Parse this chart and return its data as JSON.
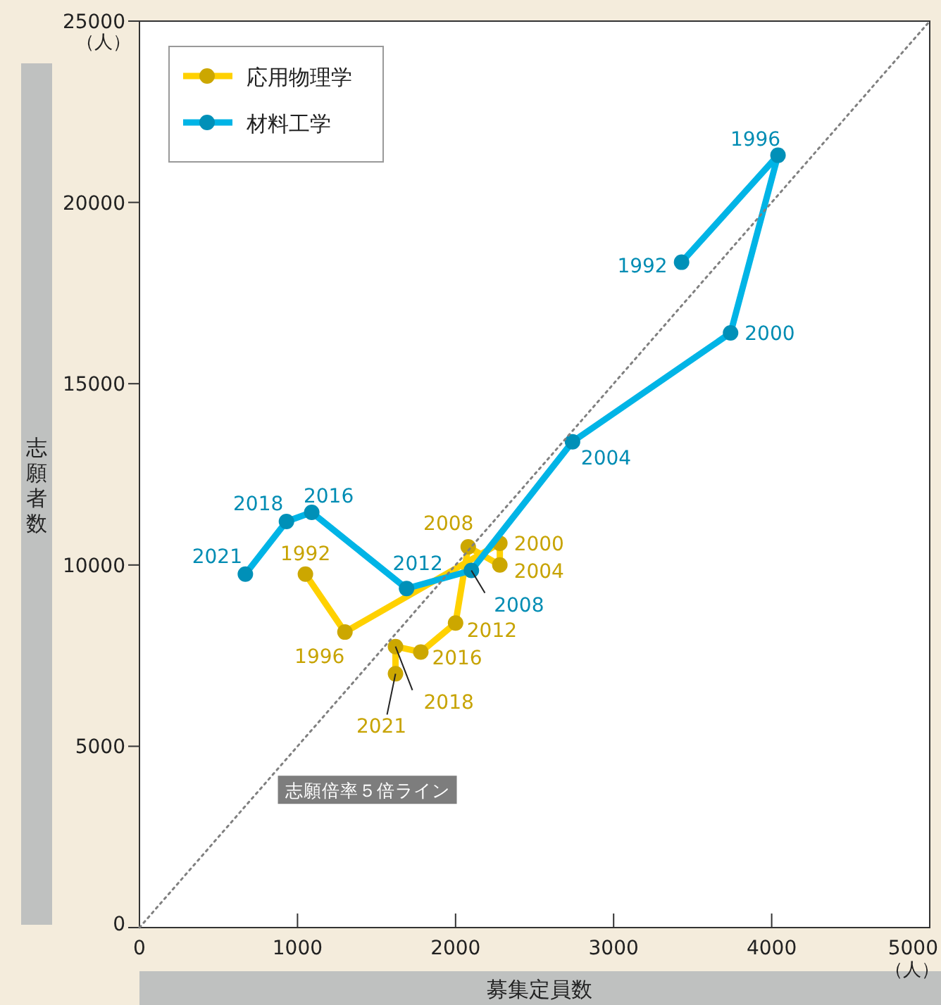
{
  "chart_data": {
    "type": "line",
    "marker": "circle",
    "legend": "top left",
    "grid": false,
    "xlabel": "募集定員数",
    "ylabel": "志願者数",
    "xlim": [
      0,
      5000
    ],
    "ylim": [
      0,
      25000
    ],
    "xticks": [
      0,
      1000,
      2000,
      3000,
      4000,
      5000
    ],
    "yticks": [
      0,
      5000,
      10000,
      15000,
      20000,
      25000
    ],
    "series": [
      {
        "name": "応用物理学",
        "color": "#ffd100",
        "x": [
          1050,
          1300,
          2280,
          2280,
          2080,
          2000,
          1780,
          1620,
          1620
        ],
        "values": [
          9750,
          8150,
          10600,
          10000,
          10500,
          8400,
          7600,
          7750,
          7000
        ]
      },
      {
        "name": "材料工学",
        "color": "#00b4e6",
        "x": [
          3430,
          4040,
          3740,
          2740,
          2100,
          1690,
          1090,
          930,
          670
        ],
        "values": [
          18350,
          21300,
          16400,
          13400,
          9850,
          9350,
          11450,
          11200,
          9750
        ]
      },
      {
        "type": "line",
        "line_style": "dotted",
        "marker": "none",
        "color": "#808080",
        "x": [
          0,
          5000
        ],
        "values": [
          0,
          25000
        ]
      }
    ],
    "annotations": [
      {
        "text": "志願倍率５倍ライン",
        "x": 760,
        "y": 3800
      },
      "（人）",
      "（人）",
      {
        "text": "1992",
        "x": 1050,
        "y": 9750
      },
      {
        "text": "1996",
        "x": 1300,
        "y": 8150
      },
      {
        "text": "2000",
        "x": 2280,
        "y": 10600
      },
      {
        "text": "2004",
        "x": 2280,
        "y": 10000
      },
      {
        "text": "2008",
        "x": 2080,
        "y": 10500
      },
      {
        "text": "2012",
        "x": 2000,
        "y": 8400
      },
      {
        "text": "2016",
        "x": 1780,
        "y": 7600
      },
      {
        "text": "2018",
        "x": 1620,
        "y": 7750
      },
      {
        "text": "2021",
        "x": 1620,
        "y": 7000
      },
      {
        "text": "1992",
        "x": 3430,
        "y": 18350
      },
      {
        "text": "1996",
        "x": 4040,
        "y": 21300
      },
      {
        "text": "2000",
        "x": 3740,
        "y": 16400
      },
      {
        "text": "2004",
        "x": 2740,
        "y": 13400
      },
      {
        "text": "2008",
        "x": 2100,
        "y": 9850
      },
      {
        "text": "2012",
        "x": 1690,
        "y": 9350
      },
      {
        "text": "2016",
        "x": 1090,
        "y": 11450
      },
      {
        "text": "2018",
        "x": 930,
        "y": 11200
      },
      {
        "text": "2021",
        "x": 670,
        "y": 9750
      }
    ]
  }
}
